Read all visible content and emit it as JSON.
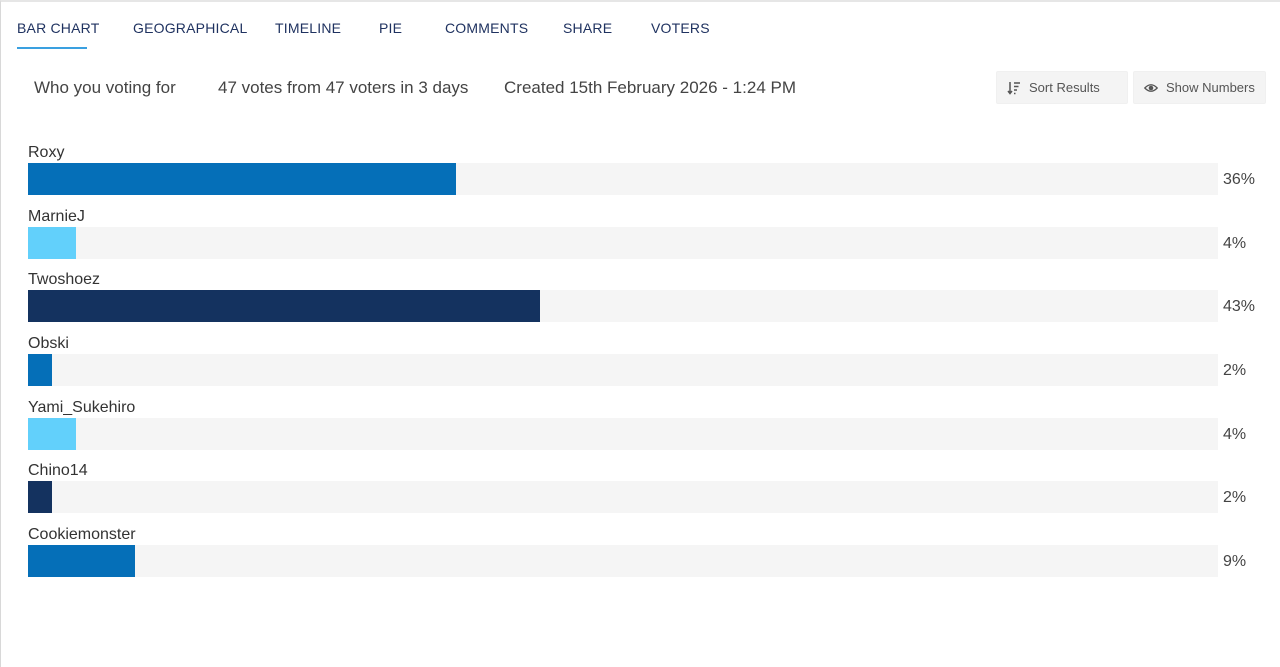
{
  "tabs": [
    {
      "label": "BAR CHART",
      "active": true
    },
    {
      "label": "GEOGRAPHICAL",
      "active": false
    },
    {
      "label": "TIMELINE",
      "active": false
    },
    {
      "label": "PIE",
      "active": false
    },
    {
      "label": "COMMENTS",
      "active": false
    },
    {
      "label": "SHARE",
      "active": false
    },
    {
      "label": "VOTERS",
      "active": false
    }
  ],
  "poll": {
    "title": "Who you voting for",
    "votes_summary": "47 votes from 47 voters in 3 days",
    "created": "Created 15th February 2026 - 1:24 PM"
  },
  "actions": {
    "sort_label": "Sort Results",
    "sort_icon": "sort-icon",
    "show_numbers_label": "Show Numbers",
    "show_numbers_icon": "eye-icon"
  },
  "colors": {
    "dark_blue": "#14325f",
    "mid_blue": "#056fb8",
    "light_blue": "#62d0fb",
    "track": "#f5f5f5",
    "tab_text": "#1f3260",
    "tab_underline": "#3aa0e0"
  },
  "chart_data": {
    "type": "bar",
    "orientation": "horizontal",
    "categories": [
      "Roxy",
      "MarnieJ",
      "Twoshoez",
      "Obski",
      "Yami_Sukehiro",
      "Chino14",
      "Cookiemonster"
    ],
    "values": [
      36,
      4,
      43,
      2,
      4,
      2,
      9
    ],
    "labels": [
      "36%",
      "4%",
      "43%",
      "2%",
      "4%",
      "2%",
      "9%"
    ],
    "bar_colors": [
      "#056fb8",
      "#62d0fb",
      "#14325f",
      "#056fb8",
      "#62d0fb",
      "#14325f",
      "#056fb8"
    ],
    "xlim": [
      0,
      100
    ]
  }
}
